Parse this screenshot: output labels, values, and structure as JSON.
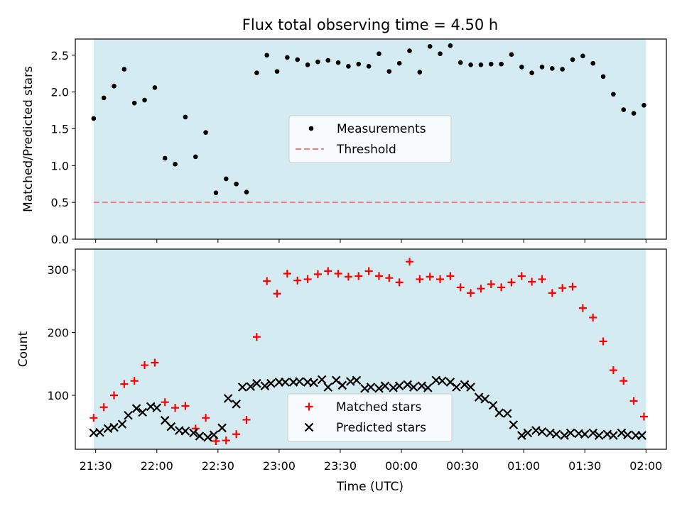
{
  "title": "Flux total observing time = 4.50 h",
  "xlabel": "Time (UTC)",
  "colors": {
    "band": "#add8e6",
    "measurement": "#000000",
    "threshold": "#f08080",
    "matched": "#ff0000",
    "predicted": "#000000"
  },
  "chart_data": [
    {
      "type": "scatter",
      "ylabel": "Matched/Predicted stars",
      "ylim": [
        0,
        2.72
      ],
      "yticks": [
        "0.0",
        "0.5",
        "1.0",
        "1.5",
        "2.0",
        "2.5"
      ],
      "shaded_span": [
        "21:29",
        "02:00"
      ],
      "legend": {
        "position": "center",
        "entries": [
          "Measurements",
          "Threshold"
        ]
      },
      "threshold": 0.5,
      "series": [
        {
          "name": "Measurements",
          "x": [
            "21:29",
            "21:34",
            "21:39",
            "21:44",
            "21:49",
            "21:54",
            "21:59",
            "22:04",
            "22:09",
            "22:14",
            "22:19",
            "22:24",
            "22:29",
            "22:34",
            "22:39",
            "22:44",
            "22:49",
            "22:54",
            "22:59",
            "23:04",
            "23:09",
            "23:14",
            "23:19",
            "23:24",
            "23:29",
            "23:34",
            "23:39",
            "23:44",
            "23:49",
            "23:54",
            "23:59",
            "00:04",
            "00:09",
            "00:14",
            "00:19",
            "00:24",
            "00:29",
            "00:34",
            "00:39",
            "00:44",
            "00:49",
            "00:54",
            "00:59",
            "01:04",
            "01:09",
            "01:14",
            "01:19",
            "01:24",
            "01:29",
            "01:34",
            "01:39",
            "01:44",
            "01:49",
            "01:54",
            "01:59"
          ],
          "values": [
            1.64,
            1.92,
            2.08,
            2.31,
            1.85,
            1.89,
            2.06,
            1.1,
            1.02,
            1.66,
            1.12,
            1.45,
            0.63,
            0.82,
            0.75,
            0.64,
            2.26,
            2.5,
            2.28,
            2.47,
            2.44,
            2.37,
            2.41,
            2.43,
            2.4,
            2.35,
            2.38,
            2.35,
            2.52,
            2.28,
            2.39,
            2.56,
            2.27,
            2.62,
            2.52,
            2.63,
            2.4,
            2.37,
            2.37,
            2.38,
            2.38,
            2.51,
            2.34,
            2.26,
            2.34,
            2.32,
            2.31,
            2.44,
            2.49,
            2.39,
            2.21,
            1.97,
            1.76,
            1.71,
            1.82
          ]
        }
      ]
    },
    {
      "type": "scatter",
      "ylabel": "Count",
      "ylim": [
        14,
        333
      ],
      "yticks": [
        "100",
        "200",
        "300"
      ],
      "xticks": [
        "21:30",
        "22:00",
        "22:30",
        "23:00",
        "23:30",
        "00:00",
        "00:30",
        "01:00",
        "01:30",
        "02:00"
      ],
      "shaded_span": [
        "21:29",
        "02:00"
      ],
      "legend": {
        "position": "bottom-center",
        "entries": [
          "Matched stars",
          "Predicted stars"
        ]
      },
      "series": [
        {
          "name": "Matched stars",
          "x": [
            "21:29",
            "21:34",
            "21:39",
            "21:44",
            "21:49",
            "21:54",
            "21:59",
            "22:04",
            "22:09",
            "22:14",
            "22:19",
            "22:24",
            "22:29",
            "22:34",
            "22:39",
            "22:44",
            "22:49",
            "22:54",
            "22:59",
            "23:04",
            "23:09",
            "23:14",
            "23:19",
            "23:24",
            "23:29",
            "23:34",
            "23:39",
            "23:44",
            "23:49",
            "23:54",
            "23:59",
            "00:04",
            "00:09",
            "00:14",
            "00:19",
            "00:24",
            "00:29",
            "00:34",
            "00:39",
            "00:44",
            "00:49",
            "00:54",
            "00:59",
            "01:04",
            "01:09",
            "01:14",
            "01:19",
            "01:24",
            "01:29",
            "01:34",
            "01:39",
            "01:44",
            "01:49",
            "01:54",
            "01:59"
          ],
          "values": [
            64,
            81,
            100,
            118,
            123,
            148,
            152,
            89,
            80,
            83,
            47,
            64,
            27,
            28,
            38,
            61,
            193,
            282,
            262,
            294,
            283,
            285,
            293,
            298,
            294,
            289,
            290,
            298,
            290,
            287,
            280,
            313,
            285,
            289,
            285,
            290,
            272,
            263,
            270,
            277,
            272,
            280,
            290,
            281,
            285,
            263,
            271,
            273,
            239,
            224,
            186,
            140,
            123,
            91,
            66
          ]
        },
        {
          "name": "Predicted stars",
          "x": [
            "21:29",
            "21:32",
            "21:36",
            "21:39",
            "21:43",
            "21:46",
            "21:50",
            "21:53",
            "21:57",
            "22:00",
            "22:04",
            "22:07",
            "22:11",
            "22:14",
            "22:18",
            "22:21",
            "22:25",
            "22:28",
            "22:32",
            "22:35",
            "22:39",
            "22:42",
            "22:46",
            "22:49",
            "22:53",
            "22:56",
            "23:00",
            "23:03",
            "23:07",
            "23:10",
            "23:14",
            "23:17",
            "23:21",
            "23:24",
            "23:28",
            "23:31",
            "23:35",
            "23:38",
            "23:42",
            "23:45",
            "23:49",
            "23:52",
            "23:56",
            "23:59",
            "00:03",
            "00:06",
            "00:10",
            "00:13",
            "00:17",
            "00:20",
            "00:24",
            "00:27",
            "00:31",
            "00:34",
            "00:38",
            "00:41",
            "00:45",
            "00:48",
            "00:52",
            "00:55",
            "00:59",
            "01:02",
            "01:06",
            "01:09",
            "01:13",
            "01:16",
            "01:20",
            "01:23",
            "01:27",
            "01:30",
            "01:34",
            "01:37",
            "01:41",
            "01:44",
            "01:48",
            "01:51",
            "01:55",
            "01:58"
          ],
          "values": [
            40,
            41,
            47,
            49,
            54,
            68,
            79,
            73,
            82,
            80,
            60,
            50,
            44,
            43,
            40,
            35,
            33,
            37,
            48,
            95,
            86,
            113,
            114,
            119,
            115,
            119,
            121,
            121,
            121,
            122,
            121,
            120,
            125,
            113,
            124,
            116,
            122,
            124,
            111,
            113,
            111,
            115,
            112,
            115,
            117,
            113,
            115,
            112,
            124,
            123,
            121,
            113,
            117,
            113,
            97,
            94,
            84,
            72,
            71,
            53,
            36,
            40,
            44,
            42,
            40,
            38,
            36,
            40,
            39,
            38,
            40,
            36,
            38,
            36,
            40,
            37,
            36,
            36
          ]
        }
      ]
    }
  ]
}
